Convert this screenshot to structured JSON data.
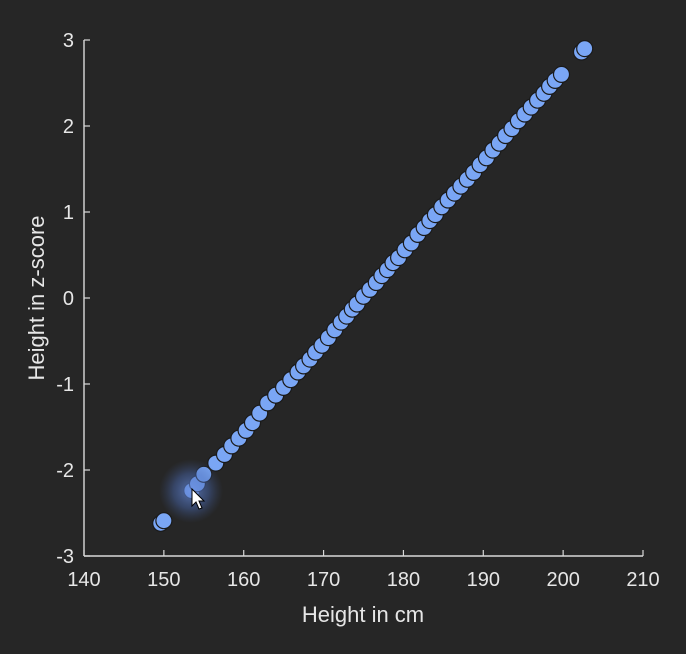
{
  "chart_data": {
    "type": "scatter",
    "title": "",
    "xlabel": "Height in cm",
    "ylabel": "Height in z-score",
    "xlim": [
      140,
      210
    ],
    "ylim": [
      -3,
      3
    ],
    "xticks": [
      "140",
      "150",
      "160",
      "170",
      "180",
      "190",
      "200",
      "210"
    ],
    "yticks": [
      "-3",
      "-2",
      "-1",
      "0",
      "1",
      "2",
      "3"
    ],
    "grid": false,
    "marker_color": "#7aa6f5",
    "marker_edge_color": "#1a1a1a",
    "background_color": "#262626",
    "series": [
      {
        "points": [
          [
            149.6,
            -2.62
          ],
          [
            150.0,
            -2.59
          ],
          [
            153.5,
            -2.24
          ],
          [
            154.2,
            -2.16
          ],
          [
            155.0,
            -2.05
          ],
          [
            156.5,
            -1.92
          ],
          [
            157.6,
            -1.82
          ],
          [
            158.5,
            -1.72
          ],
          [
            159.4,
            -1.63
          ],
          [
            160.3,
            -1.54
          ],
          [
            161.1,
            -1.45
          ],
          [
            162.0,
            -1.34
          ],
          [
            163.0,
            -1.22
          ],
          [
            164.0,
            -1.13
          ],
          [
            165.0,
            -1.04
          ],
          [
            165.9,
            -0.95
          ],
          [
            166.8,
            -0.86
          ],
          [
            167.5,
            -0.79
          ],
          [
            168.3,
            -0.71
          ],
          [
            169.0,
            -0.63
          ],
          [
            169.8,
            -0.55
          ],
          [
            170.6,
            -0.46
          ],
          [
            171.4,
            -0.37
          ],
          [
            172.2,
            -0.28
          ],
          [
            172.9,
            -0.21
          ],
          [
            173.6,
            -0.13
          ],
          [
            174.2,
            -0.07
          ],
          [
            175.0,
            0.02
          ],
          [
            175.8,
            0.1
          ],
          [
            176.6,
            0.18
          ],
          [
            177.3,
            0.26
          ],
          [
            178.0,
            0.33
          ],
          [
            178.7,
            0.41
          ],
          [
            179.4,
            0.47
          ],
          [
            180.2,
            0.56
          ],
          [
            181.0,
            0.64
          ],
          [
            181.8,
            0.74
          ],
          [
            182.6,
            0.82
          ],
          [
            183.3,
            0.9
          ],
          [
            184.0,
            0.97
          ],
          [
            184.8,
            1.06
          ],
          [
            185.6,
            1.14
          ],
          [
            186.4,
            1.22
          ],
          [
            187.2,
            1.3
          ],
          [
            188.0,
            1.38
          ],
          [
            188.8,
            1.46
          ],
          [
            189.6,
            1.55
          ],
          [
            190.4,
            1.63
          ],
          [
            191.2,
            1.72
          ],
          [
            192.0,
            1.8
          ],
          [
            192.8,
            1.89
          ],
          [
            193.6,
            1.97
          ],
          [
            194.4,
            2.06
          ],
          [
            195.2,
            2.14
          ],
          [
            196.0,
            2.22
          ],
          [
            196.8,
            2.3
          ],
          [
            197.6,
            2.38
          ],
          [
            198.3,
            2.46
          ],
          [
            199.0,
            2.53
          ],
          [
            199.8,
            2.6
          ],
          [
            202.3,
            2.86
          ],
          [
            202.7,
            2.9
          ]
        ]
      }
    ]
  }
}
